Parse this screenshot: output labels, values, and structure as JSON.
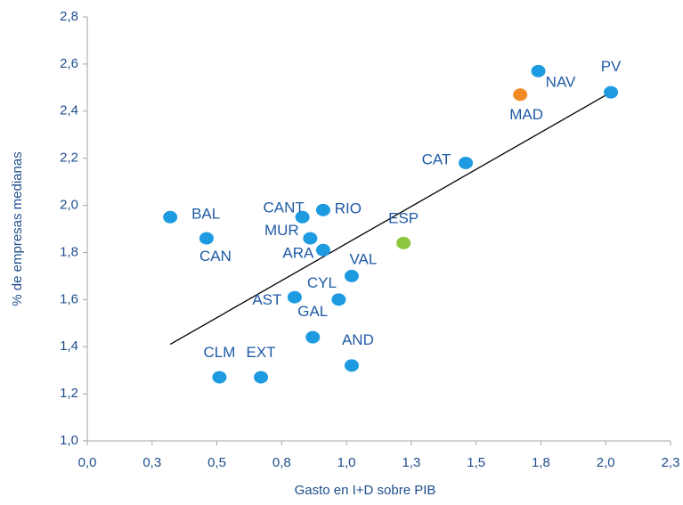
{
  "chart_data": {
    "type": "scatter",
    "x_label": "Gasto en I+D sobre PIB",
    "y_label": "% de empresas medianas",
    "labels": [
      "BAL",
      "CAN",
      "CLM",
      "EXT",
      "CANT",
      "RIO",
      "MUR",
      "ARA",
      "VAL",
      "AST",
      "CYL",
      "GAL",
      "AND",
      "ESP",
      "CAT",
      "MAD",
      "NAV",
      "PV"
    ],
    "x": [
      0.32,
      0.46,
      0.51,
      0.67,
      0.83,
      0.91,
      0.86,
      0.91,
      1.02,
      0.8,
      0.97,
      0.87,
      1.02,
      1.22,
      1.46,
      1.67,
      1.74,
      2.02
    ],
    "y": [
      1.95,
      1.86,
      1.27,
      1.27,
      1.95,
      1.98,
      1.86,
      1.81,
      1.7,
      1.61,
      1.6,
      1.44,
      1.32,
      1.84,
      2.18,
      2.47,
      2.57,
      2.48
    ],
    "colors": [
      "#1e9be0",
      "#1e9be0",
      "#1e9be0",
      "#1e9be0",
      "#1e9be0",
      "#1e9be0",
      "#1e9be0",
      "#1e9be0",
      "#1e9be0",
      "#1e9be0",
      "#1e9be0",
      "#1e9be0",
      "#1e9be0",
      "#8dc63f",
      "#1e9be0",
      "#f08a24",
      "#1e9be0",
      "#1e9be0"
    ],
    "trendline": {
      "x": [
        0.32,
        2.02
      ],
      "y": [
        1.41,
        2.48
      ],
      "color": "#000000"
    },
    "xlim": [
      0,
      2.25
    ],
    "xticks": [
      {
        "value": 0,
        "label": "0,0"
      },
      {
        "value": 0.25,
        "label": "0,3"
      },
      {
        "value": 0.5,
        "label": "0,5"
      },
      {
        "value": 0.75,
        "label": "0,8"
      },
      {
        "value": 1,
        "label": "1,0"
      },
      {
        "value": 1.25,
        "label": "1,3"
      },
      {
        "value": 1.5,
        "label": "1,5"
      },
      {
        "value": 1.75,
        "label": "1,8"
      },
      {
        "value": 2,
        "label": "2,0"
      },
      {
        "value": 2.25,
        "label": "2,3"
      }
    ],
    "ylim": [
      1,
      2.8
    ],
    "yticks": [
      {
        "value": 1,
        "label": "1,0"
      },
      {
        "value": 1.2,
        "label": "1,2"
      },
      {
        "value": 1.4,
        "label": "1,4"
      },
      {
        "value": 1.6,
        "label": "1,6"
      },
      {
        "value": 1.8,
        "label": "1,8"
      },
      {
        "value": 2,
        "label": "2,0"
      },
      {
        "value": 2.2,
        "label": "2,2"
      },
      {
        "value": 2.4,
        "label": "2,4"
      },
      {
        "value": 2.6,
        "label": "2,6"
      },
      {
        "value": 2.8,
        "label": "2,8"
      }
    ],
    "grid": false
  }
}
